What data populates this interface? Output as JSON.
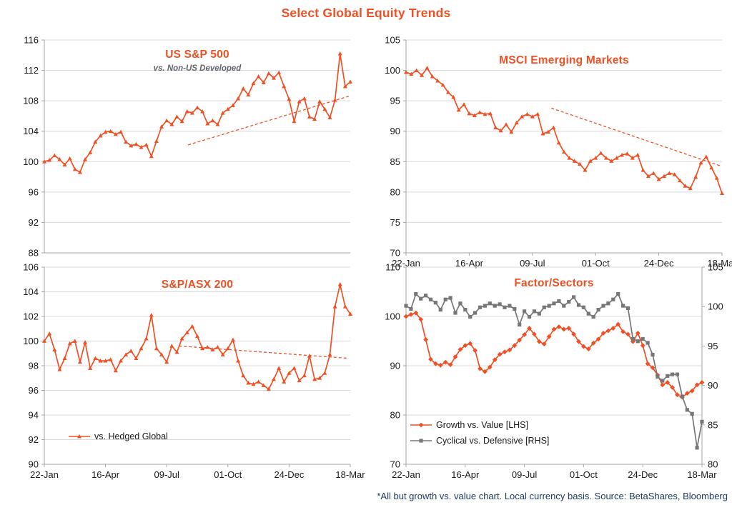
{
  "page": {
    "title": "Select Global Equity Trends",
    "footnote": "*All but growth vs. value chart. Local currency basis.  Source: BetaShares, Bloomberg"
  },
  "colors": {
    "accent": "#F05024",
    "gray_series": "#777777",
    "grid": "#D9D9D9",
    "axis": "#A6A6A6",
    "tick": "#1a1a1a"
  },
  "x_labels": [
    "22-Jan",
    "16-Apr",
    "09-Jul",
    "01-Oct",
    "24-Dec",
    "18-Mar"
  ],
  "chart_data": [
    {
      "type": "line",
      "title": "US S&P 500",
      "subtitle": "vs. Non-US Developed",
      "ylim": [
        88,
        116
      ],
      "ystep": 4,
      "show_x_labels": false,
      "grid": true,
      "trendline": {
        "x1": 0.47,
        "y1": 102.2,
        "x2": 0.995,
        "y2": 108.6
      },
      "series": [
        {
          "name": "US S&P 500 vs. Non-US Developed",
          "axis": "left",
          "color_key": "accent",
          "marker": "triangle",
          "values": [
            100.0,
            100.2,
            100.8,
            100.3,
            99.6,
            100.4,
            99.0,
            98.6,
            100.3,
            101.2,
            102.6,
            103.4,
            103.9,
            104.0,
            103.6,
            103.9,
            102.6,
            102.1,
            102.3,
            101.9,
            102.2,
            100.7,
            102.7,
            104.6,
            105.4,
            104.9,
            105.9,
            105.3,
            106.6,
            106.4,
            107.1,
            106.6,
            105.0,
            105.4,
            104.9,
            106.4,
            106.9,
            107.4,
            108.3,
            109.6,
            108.8,
            110.3,
            111.2,
            110.4,
            111.6,
            111.0,
            111.7,
            109.9,
            108.2,
            105.3,
            107.9,
            108.3,
            105.9,
            105.6,
            107.9,
            106.9,
            105.8,
            108.1,
            114.2,
            109.9,
            110.5
          ]
        }
      ]
    },
    {
      "type": "line",
      "title": "MSCI Emerging Markets",
      "ylim": [
        70,
        105
      ],
      "ystep": 5,
      "show_x_labels": true,
      "grid": true,
      "trendline": {
        "x1": 0.46,
        "y1": 93.8,
        "x2": 0.995,
        "y2": 84.3
      },
      "series": [
        {
          "name": "MSCI Emerging Markets",
          "axis": "left",
          "color_key": "accent",
          "marker": "triangle",
          "values": [
            99.7,
            99.4,
            100.0,
            99.2,
            100.4,
            99.0,
            98.3,
            97.6,
            96.4,
            95.6,
            93.5,
            94.4,
            92.9,
            92.6,
            93.1,
            92.8,
            92.9,
            90.6,
            90.1,
            91.1,
            89.9,
            91.4,
            92.4,
            92.8,
            92.4,
            92.8,
            89.6,
            89.9,
            90.6,
            88.1,
            86.6,
            85.6,
            85.1,
            84.6,
            83.6,
            85.1,
            85.6,
            86.4,
            85.6,
            85.1,
            85.6,
            86.1,
            86.3,
            85.6,
            86.1,
            83.6,
            82.6,
            83.1,
            82.1,
            82.6,
            83.1,
            82.9,
            81.9,
            81.0,
            80.6,
            82.5,
            84.8,
            85.8,
            84.0,
            82.3,
            79.8
          ]
        }
      ]
    },
    {
      "type": "line",
      "title": "S&P/ASX 200",
      "ylim": [
        90,
        106
      ],
      "ystep": 2,
      "show_x_labels": true,
      "grid": true,
      "trendline": {
        "x1": 0.44,
        "y1": 99.6,
        "x2": 0.995,
        "y2": 98.6
      },
      "series": [
        {
          "name": "vs. Hedged Global",
          "axis": "left",
          "color_key": "accent",
          "marker": "triangle",
          "values": [
            100.0,
            100.6,
            99.3,
            97.7,
            98.6,
            99.8,
            100.0,
            98.3,
            99.9,
            97.8,
            98.6,
            98.4,
            98.4,
            98.5,
            97.6,
            98.4,
            98.9,
            99.2,
            98.6,
            99.4,
            100.2,
            102.1,
            99.4,
            98.9,
            98.3,
            99.6,
            99.1,
            100.2,
            100.7,
            101.2,
            100.4,
            99.4,
            99.5,
            99.3,
            99.5,
            98.9,
            99.4,
            100.1,
            98.4,
            97.2,
            96.6,
            96.5,
            96.7,
            96.4,
            96.1,
            96.9,
            97.8,
            96.7,
            97.4,
            97.8,
            96.8,
            97.2,
            98.8,
            96.9,
            97.0,
            97.4,
            98.9,
            102.8,
            104.6,
            102.8,
            102.2
          ]
        }
      ]
    },
    {
      "type": "line",
      "title": "Factor/Sectors",
      "ylim": [
        70,
        110
      ],
      "ystep": 10,
      "y2lim": [
        80,
        105
      ],
      "y2step": 5,
      "show_x_labels": true,
      "grid": true,
      "series": [
        {
          "name": "Growth vs. Value [LHS]",
          "axis": "left",
          "color_key": "accent",
          "marker": "diamond",
          "values": [
            100.0,
            100.4,
            100.7,
            99.4,
            95.3,
            91.3,
            90.4,
            90.1,
            90.7,
            90.2,
            91.8,
            93.3,
            94.1,
            94.5,
            93.1,
            89.4,
            88.8,
            89.7,
            91.2,
            92.3,
            92.8,
            93.2,
            94.1,
            95.2,
            96.3,
            97.6,
            96.4,
            94.9,
            94.4,
            95.9,
            97.4,
            97.9,
            97.4,
            97.6,
            96.4,
            94.9,
            93.9,
            93.4,
            94.6,
            95.4,
            96.6,
            97.1,
            97.6,
            98.4,
            96.9,
            96.4,
            94.9,
            96.6,
            94.1,
            90.4,
            89.6,
            88.1,
            86.1,
            86.6,
            85.6,
            84.1,
            83.6,
            84.4,
            84.9,
            86.1,
            86.6
          ]
        },
        {
          "name": "Cyclical vs. Defensive [RHS]",
          "axis": "right",
          "color_key": "gray_series",
          "marker": "square",
          "values": [
            100.1,
            99.7,
            101.6,
            101.0,
            101.4,
            100.9,
            100.5,
            99.6,
            100.9,
            101.1,
            99.2,
            100.4,
            99.6,
            98.7,
            99.2,
            99.9,
            100.1,
            100.4,
            100.1,
            100.3,
            99.9,
            100.1,
            99.7,
            97.7,
            99.4,
            98.7,
            99.4,
            99.1,
            99.9,
            100.1,
            100.4,
            100.7,
            100.1,
            100.6,
            101.2,
            100.2,
            99.9,
            99.1,
            98.7,
            99.6,
            100.1,
            100.4,
            100.9,
            101.6,
            100.1,
            99.8,
            95.9,
            95.6,
            95.9,
            95.4,
            93.9,
            91.1,
            90.6,
            91.2,
            91.4,
            91.4,
            88.6,
            86.9,
            86.4,
            82.1,
            85.4
          ]
        }
      ]
    }
  ]
}
